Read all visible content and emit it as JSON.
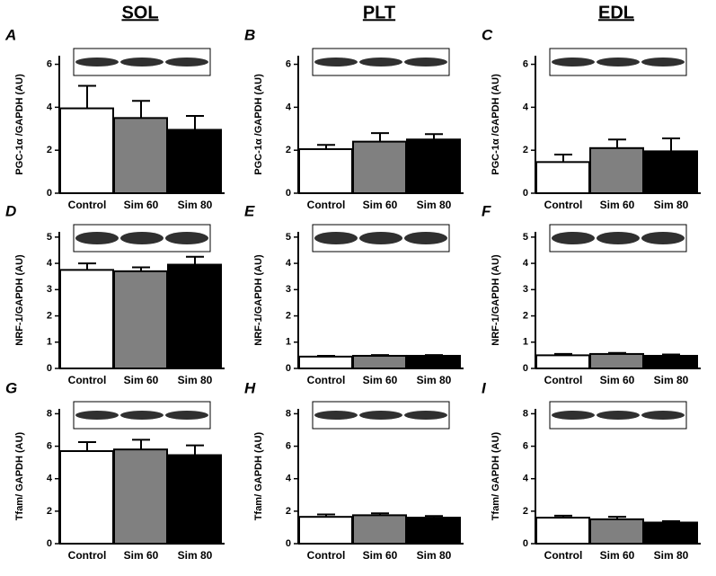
{
  "columns": [
    "SOL",
    "PLT",
    "EDL"
  ],
  "chart_data": [
    {
      "type": "bar",
      "panel": "A",
      "ylabel": "PGC-1α /GAPDH (AU)",
      "categories": [
        "Control",
        "Sim 60",
        "Sim 80"
      ],
      "values": [
        3.95,
        3.5,
        2.95
      ],
      "errors": [
        1.05,
        0.8,
        0.65
      ],
      "colors": [
        "#ffffff",
        "#808080",
        "#000000"
      ],
      "ylim": [
        0,
        6.4
      ],
      "yticks": [
        0,
        2,
        4,
        6
      ]
    },
    {
      "type": "bar",
      "panel": "B",
      "ylabel": "PGC-1α /GAPDH (AU)",
      "categories": [
        "Control",
        "Sim 60",
        "Sim 80"
      ],
      "values": [
        2.05,
        2.4,
        2.5
      ],
      "errors": [
        0.2,
        0.4,
        0.25
      ],
      "colors": [
        "#ffffff",
        "#808080",
        "#000000"
      ],
      "ylim": [
        0,
        6.4
      ],
      "yticks": [
        0,
        2,
        4,
        6
      ]
    },
    {
      "type": "bar",
      "panel": "C",
      "ylabel": "PGC-1α /GAPDH (AU)",
      "categories": [
        "Control",
        "Sim 60",
        "Sim 80"
      ],
      "values": [
        1.45,
        2.1,
        1.95
      ],
      "errors": [
        0.35,
        0.4,
        0.6
      ],
      "colors": [
        "#ffffff",
        "#808080",
        "#000000"
      ],
      "ylim": [
        0,
        6.4
      ],
      "yticks": [
        0,
        2,
        4,
        6
      ]
    },
    {
      "type": "bar",
      "panel": "D",
      "ylabel": "NRF-1/GAPDH (AU)",
      "categories": [
        "Control",
        "Sim 60",
        "Sim 80"
      ],
      "values": [
        3.75,
        3.7,
        3.95
      ],
      "errors": [
        0.25,
        0.15,
        0.3
      ],
      "colors": [
        "#ffffff",
        "#808080",
        "#000000"
      ],
      "ylim": [
        0,
        5.2
      ],
      "yticks": [
        0,
        1,
        2,
        3,
        4,
        5
      ]
    },
    {
      "type": "bar",
      "panel": "E",
      "ylabel": "NRF-1/GAPDH (AU)",
      "categories": [
        "Control",
        "Sim 60",
        "Sim 80"
      ],
      "values": [
        0.45,
        0.48,
        0.48
      ],
      "errors": [
        0.03,
        0.03,
        0.03
      ],
      "colors": [
        "#ffffff",
        "#808080",
        "#000000"
      ],
      "ylim": [
        0,
        5.2
      ],
      "yticks": [
        0,
        1,
        2,
        3,
        4,
        5
      ]
    },
    {
      "type": "bar",
      "panel": "F",
      "ylabel": "NRF-1/GAPDH (AU)",
      "categories": [
        "Control",
        "Sim 60",
        "Sim 80"
      ],
      "values": [
        0.5,
        0.55,
        0.48
      ],
      "errors": [
        0.05,
        0.04,
        0.05
      ],
      "colors": [
        "#ffffff",
        "#808080",
        "#000000"
      ],
      "ylim": [
        0,
        5.2
      ],
      "yticks": [
        0,
        1,
        2,
        3,
        4,
        5
      ]
    },
    {
      "type": "bar",
      "panel": "G",
      "ylabel": "Tfam/ GAPDH (AU)",
      "categories": [
        "Control",
        "Sim 60",
        "Sim 80"
      ],
      "values": [
        5.7,
        5.8,
        5.45
      ],
      "errors": [
        0.55,
        0.6,
        0.6
      ],
      "colors": [
        "#ffffff",
        "#808080",
        "#000000"
      ],
      "ylim": [
        0,
        8.3
      ],
      "yticks": [
        0,
        2,
        4,
        6,
        8
      ]
    },
    {
      "type": "bar",
      "panel": "H",
      "ylabel": "Tfam/ GAPDH (AU)",
      "categories": [
        "Control",
        "Sim 60",
        "Sim 80"
      ],
      "values": [
        1.65,
        1.75,
        1.6
      ],
      "errors": [
        0.15,
        0.12,
        0.1
      ],
      "colors": [
        "#ffffff",
        "#808080",
        "#000000"
      ],
      "ylim": [
        0,
        8.3
      ],
      "yticks": [
        0,
        2,
        4,
        6,
        8
      ]
    },
    {
      "type": "bar",
      "panel": "I",
      "ylabel": "Tfam/ GAPDH (AU)",
      "categories": [
        "Control",
        "Sim 60",
        "Sim 80"
      ],
      "values": [
        1.6,
        1.5,
        1.3
      ],
      "errors": [
        0.12,
        0.15,
        0.08
      ],
      "colors": [
        "#ffffff",
        "#808080",
        "#000000"
      ],
      "ylim": [
        0,
        8.3
      ],
      "yticks": [
        0,
        2,
        4,
        6,
        8
      ]
    }
  ]
}
